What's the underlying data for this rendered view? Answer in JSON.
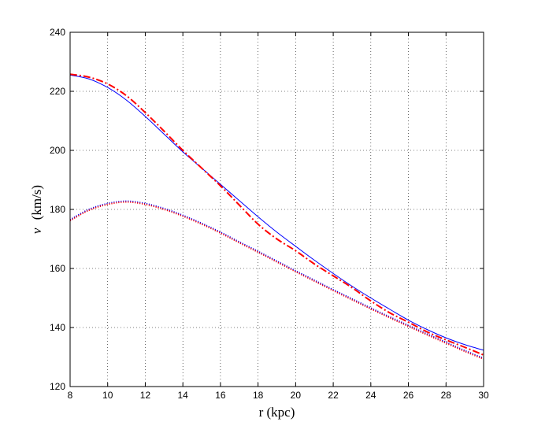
{
  "chart_data": {
    "type": "line",
    "xlabel": "r (kpc)",
    "ylabel_var": "v",
    "ylabel_unit": "(km/s)",
    "xlim": [
      8,
      30
    ],
    "ylim": [
      120,
      240
    ],
    "xticks": [
      8,
      10,
      12,
      14,
      16,
      18,
      20,
      22,
      24,
      26,
      28,
      30
    ],
    "yticks": [
      120,
      140,
      160,
      180,
      200,
      220,
      240
    ],
    "grid": true,
    "series": [
      {
        "style": "solid",
        "color": "#0000ff",
        "x": [
          8,
          9,
          10,
          11,
          12,
          13,
          14,
          15,
          16,
          17,
          18,
          19,
          20,
          21,
          22,
          23,
          24,
          25,
          26,
          27,
          28,
          29,
          30
        ],
        "y": [
          225.5,
          224.2,
          221.3,
          217.0,
          211.5,
          205.5,
          199.5,
          194.0,
          188.5,
          183.0,
          177.5,
          172.3,
          167.5,
          162.8,
          158.3,
          154.0,
          150.0,
          146.2,
          142.5,
          139.3,
          136.5,
          134.2,
          132.3
        ]
      },
      {
        "style": "dash-dot",
        "color": "#ff0000",
        "x": [
          8,
          9,
          10,
          11,
          12,
          13,
          14,
          15,
          16,
          17,
          18,
          19,
          20,
          21,
          22,
          23,
          24,
          25,
          26,
          27,
          28,
          29,
          30
        ],
        "y": [
          225.8,
          224.8,
          222.5,
          218.5,
          212.8,
          206.5,
          200.0,
          194.0,
          188.0,
          181.5,
          175.0,
          170.0,
          166.0,
          161.5,
          157.5,
          153.5,
          149.0,
          145.0,
          141.8,
          138.5,
          135.8,
          133.3,
          130.7
        ]
      },
      {
        "style": "dotted",
        "color": "#0000ff",
        "x": [
          8,
          9,
          10,
          11,
          12,
          13,
          14,
          15,
          16,
          17,
          18,
          19,
          20,
          21,
          22,
          23,
          24,
          25,
          26,
          27,
          28,
          29,
          30
        ],
        "y": [
          176.5,
          180.0,
          182.0,
          182.8,
          182.0,
          180.3,
          178.0,
          175.3,
          172.3,
          169.0,
          165.8,
          162.5,
          159.2,
          156.0,
          152.8,
          149.7,
          146.6,
          143.6,
          140.7,
          137.8,
          135.0,
          132.2,
          129.6
        ]
      },
      {
        "style": "dotted",
        "color": "#ff0000",
        "x": [
          8,
          9,
          10,
          11,
          12,
          13,
          14,
          15,
          16,
          17,
          18,
          19,
          20,
          21,
          22,
          23,
          24,
          25,
          26,
          27,
          28,
          29,
          30
        ],
        "y": [
          176.2,
          179.7,
          181.7,
          182.5,
          181.7,
          180.0,
          177.7,
          175.0,
          172.0,
          168.7,
          165.5,
          162.2,
          158.9,
          155.7,
          152.5,
          149.4,
          146.3,
          143.3,
          140.4,
          137.5,
          134.7,
          131.9,
          129.3
        ]
      }
    ]
  }
}
